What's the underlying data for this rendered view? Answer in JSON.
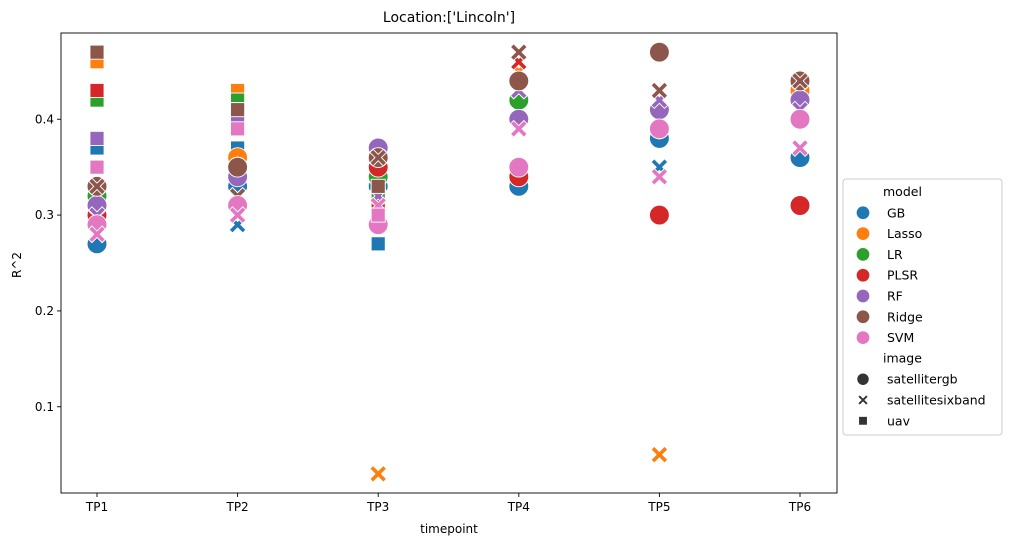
{
  "chart_data": {
    "type": "scatter",
    "title": "Location:['Lincoln']",
    "xlabel": "timepoint",
    "ylabel": "R^2",
    "categories": [
      "TP1",
      "TP2",
      "TP3",
      "TP4",
      "TP5",
      "TP6"
    ],
    "ylim": [
      0.01,
      0.49
    ],
    "yticks": [
      0.1,
      0.2,
      0.3,
      0.4
    ],
    "ytick_labels": [
      "0.1",
      "0.2",
      "0.3",
      "0.4"
    ],
    "grid": false,
    "legend_placement": "center-right outside",
    "hue": {
      "title": "model",
      "entries": [
        {
          "name": "GB",
          "color": "#1f77b4"
        },
        {
          "name": "Lasso",
          "color": "#ff7f0e"
        },
        {
          "name": "LR",
          "color": "#2ca02c"
        },
        {
          "name": "PLSR",
          "color": "#d62728"
        },
        {
          "name": "RF",
          "color": "#9467bd"
        },
        {
          "name": "Ridge",
          "color": "#8c564b"
        },
        {
          "name": "SVM",
          "color": "#e377c2"
        }
      ]
    },
    "style": {
      "title": "image",
      "entries": [
        {
          "name": "satellitergb",
          "marker": "circle"
        },
        {
          "name": "satellitesixband",
          "marker": "x"
        },
        {
          "name": "uav",
          "marker": "square"
        }
      ]
    },
    "points": [
      {
        "x": "TP1",
        "model": "GB",
        "image": "satellitergb",
        "y": 0.27
      },
      {
        "x": "TP1",
        "model": "GB",
        "image": "satellitesixband",
        "y": 0.28
      },
      {
        "x": "TP1",
        "model": "GB",
        "image": "uav",
        "y": 0.37
      },
      {
        "x": "TP1",
        "model": "Lasso",
        "image": "satellitergb",
        "y": 0.3
      },
      {
        "x": "TP1",
        "model": "Lasso",
        "image": "satellitesixband",
        "y": 0.31
      },
      {
        "x": "TP1",
        "model": "Lasso",
        "image": "uav",
        "y": 0.46
      },
      {
        "x": "TP1",
        "model": "LR",
        "image": "satellitergb",
        "y": 0.32
      },
      {
        "x": "TP1",
        "model": "LR",
        "image": "satellitesixband",
        "y": 0.33
      },
      {
        "x": "TP1",
        "model": "LR",
        "image": "uav",
        "y": 0.42
      },
      {
        "x": "TP1",
        "model": "PLSR",
        "image": "satellitergb",
        "y": 0.3
      },
      {
        "x": "TP1",
        "model": "PLSR",
        "image": "satellitesixband",
        "y": 0.3
      },
      {
        "x": "TP1",
        "model": "PLSR",
        "image": "uav",
        "y": 0.43
      },
      {
        "x": "TP1",
        "model": "RF",
        "image": "satellitergb",
        "y": 0.31
      },
      {
        "x": "TP1",
        "model": "RF",
        "image": "satellitesixband",
        "y": 0.3
      },
      {
        "x": "TP1",
        "model": "RF",
        "image": "uav",
        "y": 0.38
      },
      {
        "x": "TP1",
        "model": "Ridge",
        "image": "satellitergb",
        "y": 0.33
      },
      {
        "x": "TP1",
        "model": "Ridge",
        "image": "satellitesixband",
        "y": 0.33
      },
      {
        "x": "TP1",
        "model": "Ridge",
        "image": "uav",
        "y": 0.47
      },
      {
        "x": "TP1",
        "model": "SVM",
        "image": "satellitergb",
        "y": 0.29
      },
      {
        "x": "TP1",
        "model": "SVM",
        "image": "satellitesixband",
        "y": 0.28
      },
      {
        "x": "TP1",
        "model": "SVM",
        "image": "uav",
        "y": 0.35
      },
      {
        "x": "TP2",
        "model": "GB",
        "image": "satellitergb",
        "y": 0.33
      },
      {
        "x": "TP2",
        "model": "GB",
        "image": "satellitesixband",
        "y": 0.29
      },
      {
        "x": "TP2",
        "model": "GB",
        "image": "uav",
        "y": 0.37
      },
      {
        "x": "TP2",
        "model": "Lasso",
        "image": "satellitergb",
        "y": 0.36
      },
      {
        "x": "TP2",
        "model": "Lasso",
        "image": "satellitesixband",
        "y": 0.32
      },
      {
        "x": "TP2",
        "model": "Lasso",
        "image": "uav",
        "y": 0.43
      },
      {
        "x": "TP2",
        "model": "LR",
        "image": "satellitergb",
        "y": 0.35
      },
      {
        "x": "TP2",
        "model": "LR",
        "image": "satellitesixband",
        "y": 0.31
      },
      {
        "x": "TP2",
        "model": "LR",
        "image": "uav",
        "y": 0.42
      },
      {
        "x": "TP2",
        "model": "PLSR",
        "image": "satellitergb",
        "y": 0.35
      },
      {
        "x": "TP2",
        "model": "PLSR",
        "image": "satellitesixband",
        "y": 0.32
      },
      {
        "x": "TP2",
        "model": "PLSR",
        "image": "uav",
        "y": 0.41
      },
      {
        "x": "TP2",
        "model": "RF",
        "image": "satellitergb",
        "y": 0.34
      },
      {
        "x": "TP2",
        "model": "RF",
        "image": "satellitesixband",
        "y": 0.3
      },
      {
        "x": "TP2",
        "model": "RF",
        "image": "uav",
        "y": 0.4
      },
      {
        "x": "TP2",
        "model": "Ridge",
        "image": "satellitergb",
        "y": 0.35
      },
      {
        "x": "TP2",
        "model": "Ridge",
        "image": "satellitesixband",
        "y": 0.32
      },
      {
        "x": "TP2",
        "model": "Ridge",
        "image": "uav",
        "y": 0.41
      },
      {
        "x": "TP2",
        "model": "SVM",
        "image": "satellitergb",
        "y": 0.31
      },
      {
        "x": "TP2",
        "model": "SVM",
        "image": "satellitesixband",
        "y": 0.3
      },
      {
        "x": "TP2",
        "model": "SVM",
        "image": "uav",
        "y": 0.39
      },
      {
        "x": "TP3",
        "model": "GB",
        "image": "satellitergb",
        "y": 0.33
      },
      {
        "x": "TP3",
        "model": "GB",
        "image": "satellitesixband",
        "y": 0.32
      },
      {
        "x": "TP3",
        "model": "GB",
        "image": "uav",
        "y": 0.27
      },
      {
        "x": "TP3",
        "model": "Lasso",
        "image": "satellitergb",
        "y": 0.35
      },
      {
        "x": "TP3",
        "model": "Lasso",
        "image": "satellitesixband",
        "y": 0.03
      },
      {
        "x": "TP3",
        "model": "Lasso",
        "image": "uav",
        "y": 0.33
      },
      {
        "x": "TP3",
        "model": "LR",
        "image": "satellitergb",
        "y": 0.34
      },
      {
        "x": "TP3",
        "model": "LR",
        "image": "satellitesixband",
        "y": 0.35
      },
      {
        "x": "TP3",
        "model": "LR",
        "image": "uav",
        "y": 0.32
      },
      {
        "x": "TP3",
        "model": "PLSR",
        "image": "satellitergb",
        "y": 0.35
      },
      {
        "x": "TP3",
        "model": "PLSR",
        "image": "satellitesixband",
        "y": 0.36
      },
      {
        "x": "TP3",
        "model": "PLSR",
        "image": "uav",
        "y": 0.31
      },
      {
        "x": "TP3",
        "model": "RF",
        "image": "satellitergb",
        "y": 0.37
      },
      {
        "x": "TP3",
        "model": "RF",
        "image": "satellitesixband",
        "y": 0.32
      },
      {
        "x": "TP3",
        "model": "RF",
        "image": "uav",
        "y": 0.3
      },
      {
        "x": "TP3",
        "model": "Ridge",
        "image": "satellitergb",
        "y": 0.36
      },
      {
        "x": "TP3",
        "model": "Ridge",
        "image": "satellitesixband",
        "y": 0.36
      },
      {
        "x": "TP3",
        "model": "Ridge",
        "image": "uav",
        "y": 0.33
      },
      {
        "x": "TP3",
        "model": "SVM",
        "image": "satellitergb",
        "y": 0.29
      },
      {
        "x": "TP3",
        "model": "SVM",
        "image": "satellitesixband",
        "y": 0.31
      },
      {
        "x": "TP3",
        "model": "SVM",
        "image": "uav",
        "y": 0.3
      },
      {
        "x": "TP4",
        "model": "GB",
        "image": "satellitergb",
        "y": 0.33
      },
      {
        "x": "TP4",
        "model": "GB",
        "image": "satellitesixband",
        "y": 0.44
      },
      {
        "x": "TP4",
        "model": "Lasso",
        "image": "satellitergb",
        "y": 0.34
      },
      {
        "x": "TP4",
        "model": "Lasso",
        "image": "satellitesixband",
        "y": 0.45
      },
      {
        "x": "TP4",
        "model": "LR",
        "image": "satellitergb",
        "y": 0.42
      },
      {
        "x": "TP4",
        "model": "LR",
        "image": "satellitesixband",
        "y": 0.43
      },
      {
        "x": "TP4",
        "model": "PLSR",
        "image": "satellitergb",
        "y": 0.34
      },
      {
        "x": "TP4",
        "model": "PLSR",
        "image": "satellitesixband",
        "y": 0.46
      },
      {
        "x": "TP4",
        "model": "RF",
        "image": "satellitergb",
        "y": 0.4
      },
      {
        "x": "TP4",
        "model": "RF",
        "image": "satellitesixband",
        "y": 0.43
      },
      {
        "x": "TP4",
        "model": "Ridge",
        "image": "satellitergb",
        "y": 0.44
      },
      {
        "x": "TP4",
        "model": "Ridge",
        "image": "satellitesixband",
        "y": 0.47
      },
      {
        "x": "TP4",
        "model": "SVM",
        "image": "satellitergb",
        "y": 0.35
      },
      {
        "x": "TP4",
        "model": "SVM",
        "image": "satellitesixband",
        "y": 0.39
      },
      {
        "x": "TP5",
        "model": "GB",
        "image": "satellitergb",
        "y": 0.38
      },
      {
        "x": "TP5",
        "model": "GB",
        "image": "satellitesixband",
        "y": 0.35
      },
      {
        "x": "TP5",
        "model": "Lasso",
        "image": "satellitergb",
        "y": 0.39
      },
      {
        "x": "TP5",
        "model": "Lasso",
        "image": "satellitesixband",
        "y": 0.05
      },
      {
        "x": "TP5",
        "model": "LR",
        "image": "satellitergb",
        "y": 0.39
      },
      {
        "x": "TP5",
        "model": "LR",
        "image": "satellitesixband",
        "y": 0.41
      },
      {
        "x": "TP5",
        "model": "PLSR",
        "image": "satellitergb",
        "y": 0.3
      },
      {
        "x": "TP5",
        "model": "PLSR",
        "image": "satellitesixband",
        "y": 0.42
      },
      {
        "x": "TP5",
        "model": "RF",
        "image": "satellitergb",
        "y": 0.41
      },
      {
        "x": "TP5",
        "model": "RF",
        "image": "satellitesixband",
        "y": 0.42
      },
      {
        "x": "TP5",
        "model": "Ridge",
        "image": "satellitergb",
        "y": 0.47
      },
      {
        "x": "TP5",
        "model": "Ridge",
        "image": "satellitesixband",
        "y": 0.43
      },
      {
        "x": "TP5",
        "model": "SVM",
        "image": "satellitergb",
        "y": 0.39
      },
      {
        "x": "TP5",
        "model": "SVM",
        "image": "satellitesixband",
        "y": 0.34
      },
      {
        "x": "TP6",
        "model": "GB",
        "image": "satellitergb",
        "y": 0.36
      },
      {
        "x": "TP6",
        "model": "GB",
        "image": "satellitesixband",
        "y": 0.41
      },
      {
        "x": "TP6",
        "model": "Lasso",
        "image": "satellitergb",
        "y": 0.43
      },
      {
        "x": "TP6",
        "model": "Lasso",
        "image": "satellitesixband",
        "y": 0.44
      },
      {
        "x": "TP6",
        "model": "LR",
        "image": "satellitergb",
        "y": 0.42
      },
      {
        "x": "TP6",
        "model": "LR",
        "image": "satellitesixband",
        "y": 0.43
      },
      {
        "x": "TP6",
        "model": "PLSR",
        "image": "satellitergb",
        "y": 0.31
      },
      {
        "x": "TP6",
        "model": "PLSR",
        "image": "satellitesixband",
        "y": 0.43
      },
      {
        "x": "TP6",
        "model": "RF",
        "image": "satellitergb",
        "y": 0.42
      },
      {
        "x": "TP6",
        "model": "RF",
        "image": "satellitesixband",
        "y": 0.41
      },
      {
        "x": "TP6",
        "model": "Ridge",
        "image": "satellitergb",
        "y": 0.44
      },
      {
        "x": "TP6",
        "model": "Ridge",
        "image": "satellitesixband",
        "y": 0.44
      },
      {
        "x": "TP6",
        "model": "SVM",
        "image": "satellitergb",
        "y": 0.4
      },
      {
        "x": "TP6",
        "model": "SVM",
        "image": "satellitesixband",
        "y": 0.37
      }
    ]
  }
}
